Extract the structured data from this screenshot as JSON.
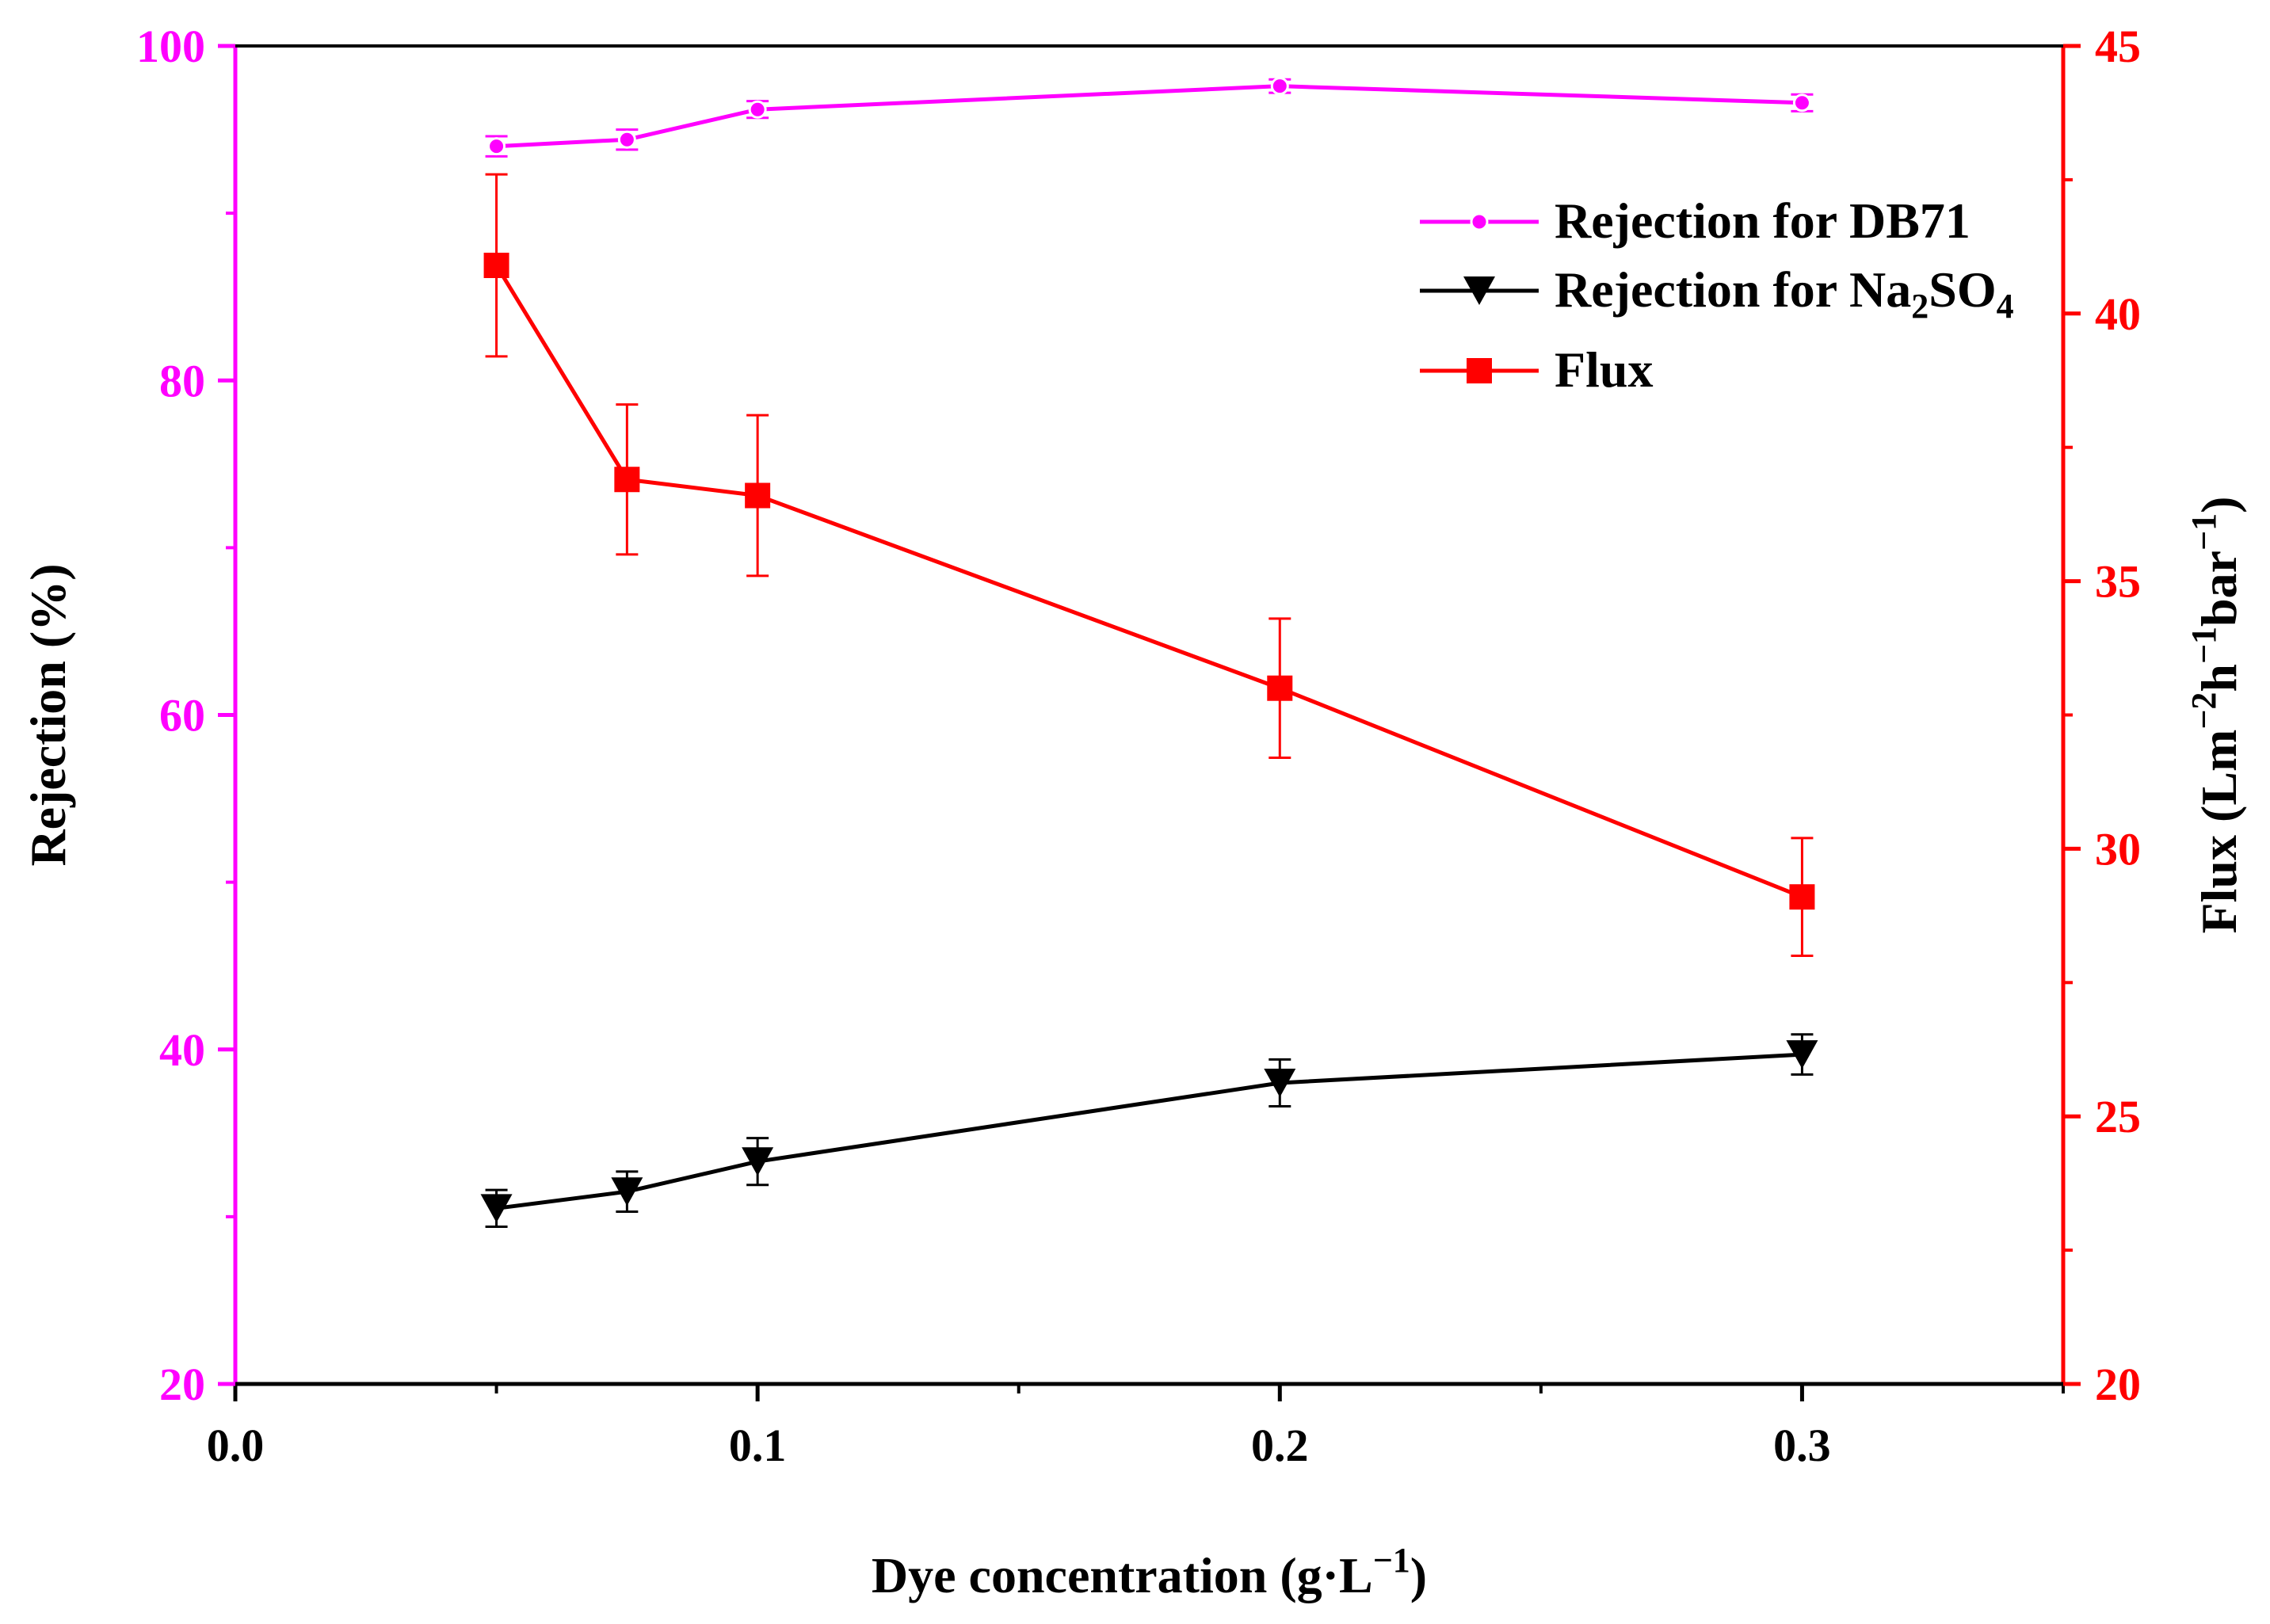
{
  "chart_data": {
    "type": "line",
    "xlabel": "Dye concentration (g·L",
    "xlabel_sup": "−1",
    "xlabel_close": ")",
    "xlim": [
      0,
      0.35
    ],
    "xticks": [
      0.0,
      0.1,
      0.2,
      0.3
    ],
    "xtick_labels": [
      "0.0",
      "0.1",
      "0.2",
      "0.3"
    ],
    "xminor": [
      0.05,
      0.15,
      0.25,
      0.35
    ],
    "y_left": {
      "label": "Rejection (%)",
      "lim": [
        20,
        100
      ],
      "ticks": [
        20,
        40,
        60,
        80,
        100
      ],
      "tick_labels": [
        "20",
        "40",
        "60",
        "80",
        "100"
      ],
      "minor": [
        30,
        50,
        70,
        90
      ],
      "color": "#ff00ff"
    },
    "y_right": {
      "label_parts": [
        {
          "t": "Flux (Lm",
          "sup": false
        },
        {
          "t": "−2",
          "sup": true
        },
        {
          "t": "h",
          "sup": false
        },
        {
          "t": "−1",
          "sup": true
        },
        {
          "t": "bar",
          "sup": false
        },
        {
          "t": "−1",
          "sup": true
        },
        {
          "t": ")",
          "sup": false
        }
      ],
      "lim": [
        20,
        45
      ],
      "ticks": [
        20,
        25,
        30,
        35,
        40,
        45
      ],
      "tick_labels": [
        "20",
        "25",
        "30",
        "35",
        "40",
        "45"
      ],
      "minor": [
        22.5,
        27.5,
        32.5,
        37.5,
        42.5
      ],
      "color": "#ff0000"
    },
    "series": [
      {
        "name": "Rejection for DB71",
        "axis": "left",
        "color": "#ff00ff",
        "marker": "circle",
        "x": [
          0.05,
          0.075,
          0.1,
          0.2,
          0.3
        ],
        "y": [
          94.0,
          94.4,
          96.2,
          97.6,
          96.6
        ],
        "err": [
          0.6,
          0.6,
          0.5,
          0.4,
          0.5
        ]
      },
      {
        "name": "Rejection for Na2SO4",
        "axis": "left",
        "color": "#000000",
        "marker": "triangle-down",
        "x": [
          0.05,
          0.075,
          0.1,
          0.2,
          0.3
        ],
        "y": [
          30.5,
          31.5,
          33.3,
          38.0,
          39.7
        ],
        "err": [
          1.1,
          1.2,
          1.4,
          1.4,
          1.2
        ]
      },
      {
        "name": "Flux",
        "axis": "right",
        "color": "#ff0000",
        "marker": "square",
        "x": [
          0.05,
          0.075,
          0.1,
          0.2,
          0.3
        ],
        "y": [
          40.9,
          36.9,
          36.6,
          33.0,
          29.1
        ],
        "err": [
          1.7,
          1.4,
          1.5,
          1.3,
          1.1
        ]
      }
    ],
    "legend": {
      "position": "top-right",
      "entries": [
        {
          "text": "Rejection for DB71"
        },
        {
          "text_parts": [
            {
              "t": "Rejection for Na",
              "sub": false
            },
            {
              "t": "2",
              "sub": true
            },
            {
              "t": "SO",
              "sub": false
            },
            {
              "t": "4",
              "sub": true
            }
          ]
        },
        {
          "text": "Flux"
        }
      ]
    }
  }
}
